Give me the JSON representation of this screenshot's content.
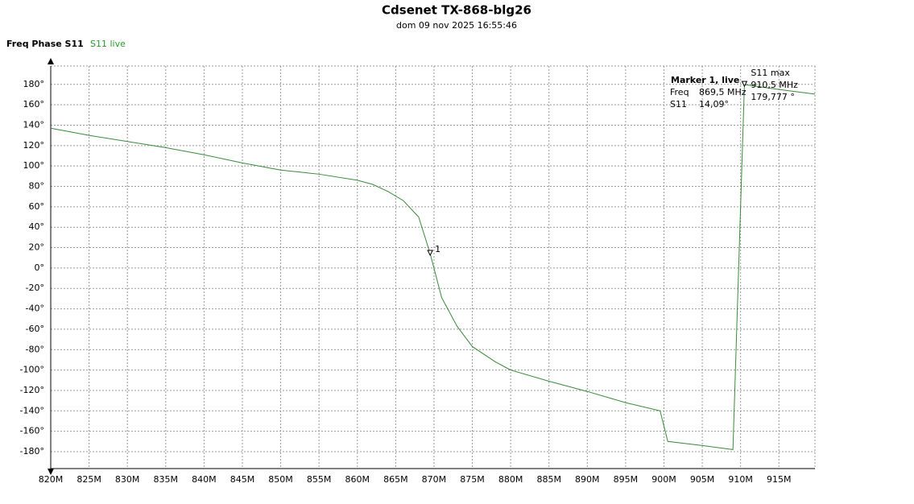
{
  "chart_data": {
    "type": "line",
    "title": "Cdsenet TX-868-blg26",
    "subtitle": "dom 09 nov 2025 16:55:46",
    "panel_label": "Freq Phase S11",
    "series": [
      {
        "name": "S11 live",
        "color": "#3a8a3a",
        "x": [
          820,
          825,
          830,
          835,
          840,
          845,
          850,
          855,
          860,
          862,
          864,
          866,
          868,
          869.5,
          871,
          873,
          875,
          878,
          880,
          885,
          890,
          895,
          899.5,
          900.5,
          905,
          909,
          910.5,
          915,
          919.7
        ],
        "values": [
          137,
          130,
          124,
          118,
          111,
          103,
          96,
          92,
          86,
          82,
          75,
          66,
          50,
          14.09,
          -29,
          -57,
          -77,
          -92,
          -100,
          -111,
          -121,
          -132,
          -140,
          -170,
          -174,
          -178,
          179.777,
          175,
          170.5
        ]
      }
    ],
    "xlim": [
      820,
      919.7
    ],
    "ylim": [
      -196.6,
      198
    ],
    "xticks": [
      {
        "value": 820,
        "label": "820M"
      },
      {
        "value": 825,
        "label": "825M"
      },
      {
        "value": 830,
        "label": "830M"
      },
      {
        "value": 835,
        "label": "835M"
      },
      {
        "value": 840,
        "label": "840M"
      },
      {
        "value": 845,
        "label": "845M"
      },
      {
        "value": 850,
        "label": "850M"
      },
      {
        "value": 855,
        "label": "855M"
      },
      {
        "value": 860,
        "label": "860M"
      },
      {
        "value": 865,
        "label": "865M"
      },
      {
        "value": 870,
        "label": "870M"
      },
      {
        "value": 875,
        "label": "875M"
      },
      {
        "value": 880,
        "label": "880M"
      },
      {
        "value": 885,
        "label": "885M"
      },
      {
        "value": 890,
        "label": "890M"
      },
      {
        "value": 895,
        "label": "895M"
      },
      {
        "value": 900,
        "label": "900M"
      },
      {
        "value": 905,
        "label": "905M"
      },
      {
        "value": 910,
        "label": "910M"
      },
      {
        "value": 915,
        "label": "915M"
      }
    ],
    "yticks": [
      {
        "value": 180,
        "label": "180°"
      },
      {
        "value": 160,
        "label": "160°"
      },
      {
        "value": 140,
        "label": "140°"
      },
      {
        "value": 120,
        "label": "120°"
      },
      {
        "value": 100,
        "label": "100°"
      },
      {
        "value": 80,
        "label": "80°"
      },
      {
        "value": 60,
        "label": "60°"
      },
      {
        "value": 40,
        "label": "40°"
      },
      {
        "value": 20,
        "label": "20°"
      },
      {
        "value": 0,
        "label": "0°"
      },
      {
        "value": -20,
        "label": "-20°"
      },
      {
        "value": -40,
        "label": "-40°"
      },
      {
        "value": -60,
        "label": "-60°"
      },
      {
        "value": -80,
        "label": "-80°"
      },
      {
        "value": -100,
        "label": "-100°"
      },
      {
        "value": -120,
        "label": "-120°"
      },
      {
        "value": -140,
        "label": "-140°"
      },
      {
        "value": -160,
        "label": "-160°"
      },
      {
        "value": -180,
        "label": "-180°"
      }
    ],
    "grid": true,
    "markers": [
      {
        "x": 869.5,
        "y": 14.09,
        "label": "1",
        "box_title": "Marker 1, live",
        "freq_name": "Freq",
        "freq_label": "869,5 MHz",
        "value_name": "S11",
        "value_label": "14,09°"
      },
      {
        "x": 910.5,
        "y": 179.777,
        "label": "S11 max",
        "freq_label": "910,5 MHz",
        "value_label": "179,777 °"
      }
    ]
  }
}
